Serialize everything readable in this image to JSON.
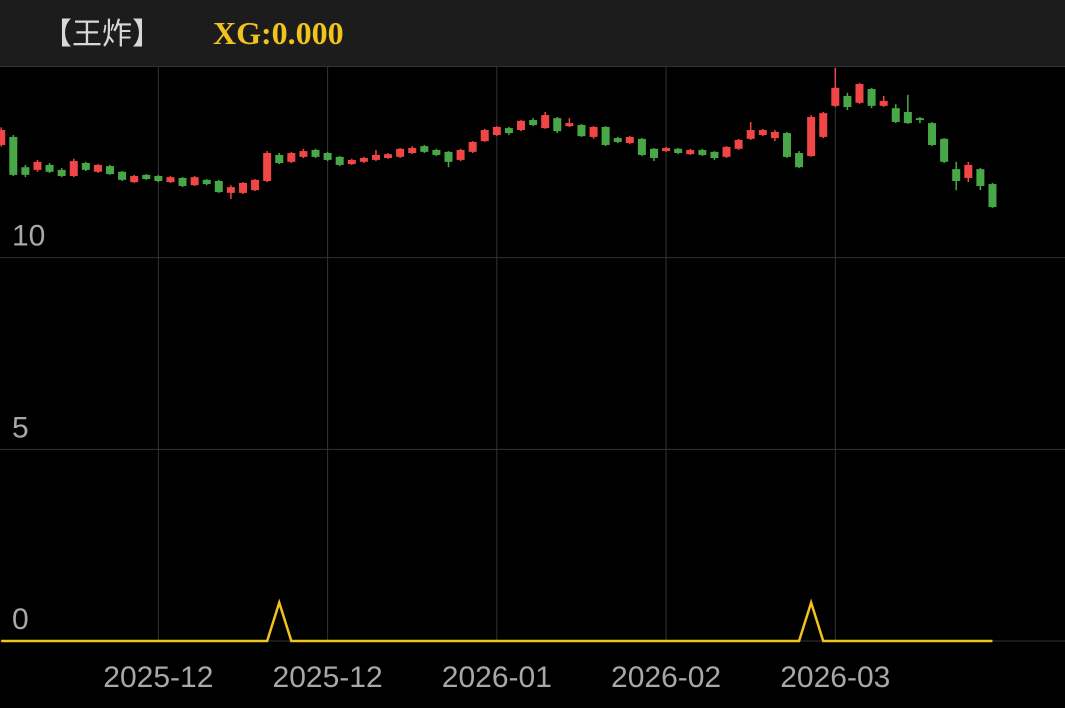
{
  "header": {
    "title": "【王炸】",
    "indicator_label": "XG:0.000"
  },
  "chart_data": {
    "type": "candlestick",
    "up_color": "#f04646",
    "down_color": "#48a848",
    "open": [
      12.94,
      13.15,
      12.36,
      12.29,
      12.42,
      12.29,
      12.13,
      12.47,
      12.24,
      12.39,
      12.24,
      11.97,
      12.16,
      12.13,
      11.97,
      12.08,
      11.89,
      12.03,
      12.0,
      11.69,
      11.69,
      11.76,
      12.0,
      12.68,
      12.5,
      12.63,
      12.81,
      12.73,
      12.63,
      12.44,
      12.5,
      12.55,
      12.6,
      12.63,
      12.73,
      12.91,
      12.81,
      12.76,
      12.55,
      12.76,
      13.04,
      13.2,
      13.38,
      13.33,
      13.59,
      13.38,
      13.64,
      13.43,
      13.46,
      13.15,
      13.41,
      13.12,
      12.99,
      13.1,
      12.84,
      12.78,
      12.84,
      12.7,
      12.81,
      12.76,
      12.63,
      12.84,
      13.1,
      13.2,
      13.12,
      13.25,
      12.73,
      12.65,
      13.15,
      13.96,
      14.22,
      14.04,
      14.4,
      13.96,
      13.9,
      13.8,
      13.64,
      13.51,
      13.1,
      12.31,
      12.08,
      12.31,
      11.92
    ],
    "high": [
      13.4,
      13.2,
      12.42,
      12.55,
      12.47,
      12.34,
      12.58,
      12.5,
      12.44,
      12.42,
      12.26,
      12.16,
      12.18,
      12.16,
      12.13,
      12.1,
      12.13,
      12.05,
      12.03,
      11.89,
      11.97,
      12.05,
      12.78,
      12.73,
      12.76,
      12.84,
      12.84,
      12.76,
      12.65,
      12.58,
      12.63,
      12.81,
      12.73,
      12.86,
      12.91,
      12.94,
      12.84,
      12.78,
      12.84,
      13.04,
      13.36,
      13.43,
      13.41,
      13.59,
      13.64,
      13.8,
      13.67,
      13.64,
      13.49,
      13.43,
      13.43,
      13.15,
      13.17,
      13.12,
      12.86,
      12.89,
      12.86,
      12.84,
      12.84,
      12.78,
      12.91,
      13.1,
      13.54,
      13.36,
      13.33,
      13.28,
      12.78,
      13.72,
      13.8,
      14.95,
      14.3,
      14.56,
      14.43,
      14.22,
      14.0,
      14.25,
      13.67,
      13.54,
      13.12,
      12.5,
      12.5,
      12.34,
      11.95
    ],
    "low": [
      12.9,
      12.13,
      12.1,
      12.24,
      12.21,
      12.1,
      12.1,
      12.26,
      12.21,
      12.16,
      12.0,
      11.95,
      12.03,
      11.97,
      11.95,
      11.84,
      11.87,
      11.89,
      11.69,
      11.53,
      11.66,
      11.74,
      11.97,
      12.44,
      12.47,
      12.6,
      12.6,
      12.52,
      12.39,
      12.42,
      12.47,
      12.52,
      12.58,
      12.6,
      12.7,
      12.73,
      12.65,
      12.36,
      12.52,
      12.73,
      13.02,
      13.17,
      13.2,
      13.3,
      13.43,
      13.36,
      13.25,
      13.41,
      13.15,
      13.1,
      12.91,
      12.99,
      12.96,
      12.65,
      12.52,
      12.76,
      12.7,
      12.68,
      12.65,
      12.55,
      12.6,
      12.81,
      13.07,
      13.17,
      13.04,
      12.6,
      12.34,
      12.63,
      13.12,
      13.93,
      13.85,
      14.01,
      13.9,
      13.93,
      13.51,
      13.49,
      13.51,
      12.91,
      12.47,
      11.76,
      11.97,
      11.76,
      11.3
    ],
    "close": [
      13.33,
      12.16,
      12.16,
      12.5,
      12.24,
      12.13,
      12.52,
      12.29,
      12.42,
      12.18,
      12.03,
      12.13,
      12.05,
      12.0,
      12.1,
      11.87,
      12.1,
      11.92,
      11.71,
      11.84,
      11.95,
      12.03,
      12.73,
      12.47,
      12.73,
      12.78,
      12.63,
      12.55,
      12.42,
      12.55,
      12.6,
      12.68,
      12.7,
      12.84,
      12.86,
      12.76,
      12.68,
      12.5,
      12.81,
      13.02,
      13.33,
      13.41,
      13.25,
      13.57,
      13.46,
      13.72,
      13.3,
      13.51,
      13.17,
      13.41,
      12.94,
      13.02,
      13.15,
      12.68,
      12.6,
      12.86,
      12.73,
      12.81,
      12.68,
      12.6,
      12.89,
      13.07,
      13.33,
      13.33,
      13.28,
      12.63,
      12.36,
      13.67,
      13.77,
      14.43,
      13.93,
      14.53,
      13.96,
      14.09,
      13.54,
      13.51,
      13.59,
      12.94,
      12.5,
      12.0,
      12.42,
      11.87,
      11.32
    ],
    "indicator": {
      "type": "line",
      "color": "#f2c21e",
      "values": [
        0,
        0,
        0,
        0,
        0,
        0,
        0,
        0,
        0,
        0,
        0,
        0,
        0,
        0,
        0,
        0,
        0,
        0,
        0,
        0,
        0,
        0,
        0,
        1,
        0,
        0,
        0,
        0,
        0,
        0,
        0,
        0,
        0,
        0,
        0,
        0,
        0,
        0,
        0,
        0,
        0,
        0,
        0,
        0,
        0,
        0,
        0,
        0,
        0,
        0,
        0,
        0,
        0,
        0,
        0,
        0,
        0,
        0,
        0,
        0,
        0,
        0,
        0,
        0,
        0,
        0,
        0,
        1,
        0,
        0,
        0,
        0,
        0,
        0,
        0,
        0,
        0,
        0,
        0,
        0,
        0,
        0,
        0
      ]
    },
    "xlim": [
      -0.1,
      88
    ],
    "xticks": [
      {
        "value": 13,
        "label": "2025-12"
      },
      {
        "value": 27,
        "label": "2025-12"
      },
      {
        "value": 41,
        "label": "2026-01"
      },
      {
        "value": 55,
        "label": "2026-02"
      },
      {
        "value": 69,
        "label": "2026-03"
      }
    ],
    "ylim": [
      0,
      15
    ],
    "yticks": [
      0,
      5,
      10
    ],
    "grid": true
  }
}
